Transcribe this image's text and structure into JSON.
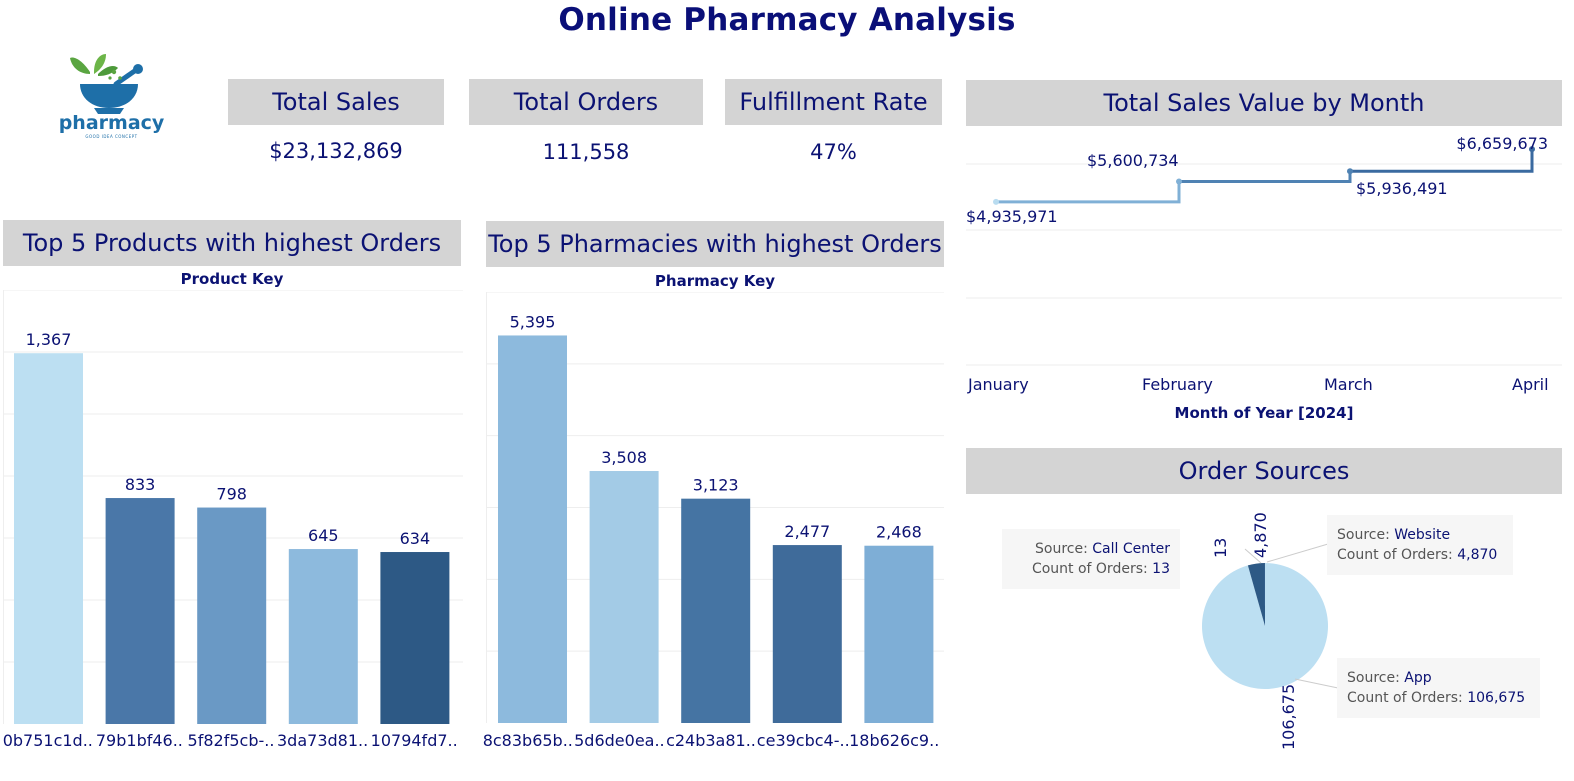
{
  "title": "Online Pharmacy Analysis",
  "logo": {
    "text": "pharmacy",
    "tagline": "GOOD IDEA CONCEPT"
  },
  "kpis": [
    {
      "label": "Total Sales",
      "value": "$23,132,869"
    },
    {
      "label": "Total Orders",
      "value": "111,558"
    },
    {
      "label": "Fulfillment Rate",
      "value": "47%"
    }
  ],
  "products_chart": {
    "header": "Top 5 Products with highest Orders",
    "axis_title": "Product Key",
    "chart_data": {
      "type": "bar",
      "categories": [
        "0b751c1d..",
        "79b1bf46..",
        "5f82f5cb-..",
        "3da73d81..",
        "10794fd7.."
      ],
      "values": [
        1367,
        833,
        798,
        645,
        634
      ],
      "value_labels": [
        "1,367",
        "833",
        "798",
        "645",
        "634"
      ],
      "colors": [
        "#bcdff2",
        "#4a77a8",
        "#6a99c5",
        "#8dbadd",
        "#2d5985"
      ],
      "ylim": [
        0,
        1600
      ]
    }
  },
  "pharmacies_chart": {
    "header": "Top 5 Pharmacies with highest Orders",
    "axis_title": "Pharmacy Key",
    "chart_data": {
      "type": "bar",
      "categories": [
        "8c83b65b..",
        "5d6de0ea..",
        "c24b3a81..",
        "ce39cbc4-..",
        "18b626c9.."
      ],
      "values": [
        5395,
        3508,
        3123,
        2477,
        2468
      ],
      "value_labels": [
        "5,395",
        "3,508",
        "3,123",
        "2,477",
        "2,468"
      ],
      "colors": [
        "#8dbadd",
        "#a3cbe6",
        "#4574a3",
        "#3f6b9a",
        "#7eaed6"
      ],
      "ylim": [
        0,
        6000
      ]
    }
  },
  "monthly_chart": {
    "header": "Total Sales Value by Month",
    "axis_title": "Month of Year [2024]",
    "chart_data": {
      "type": "line",
      "x": [
        "January",
        "February",
        "March",
        "April"
      ],
      "values": [
        4935971,
        5600734,
        5936491,
        6659673
      ],
      "value_labels": [
        "$4,935,971",
        "$5,600,734",
        "$5,936,491",
        "$6,659,673"
      ],
      "colors": [
        "#b9dcf0",
        "#80b0d6",
        "#4f82b3",
        "#3a6aa0"
      ]
    }
  },
  "sources_chart": {
    "header": "Order Sources",
    "chart_data": {
      "type": "pie",
      "categories": [
        "App",
        "Website",
        "Call Center"
      ],
      "values": [
        106675,
        4870,
        13
      ],
      "value_labels": [
        "106,675",
        "4,870",
        "13"
      ],
      "colors": [
        "#bcdff2",
        "#2d5985",
        "#4a77a8"
      ]
    },
    "tooltips": {
      "source_label": "Source:",
      "count_label": "Count of Orders:",
      "website": {
        "source": "Website",
        "count": "4,870"
      },
      "call_center": {
        "source": "Call Center",
        "count": "13"
      },
      "app": {
        "source": "App",
        "count": "106,675"
      }
    }
  }
}
